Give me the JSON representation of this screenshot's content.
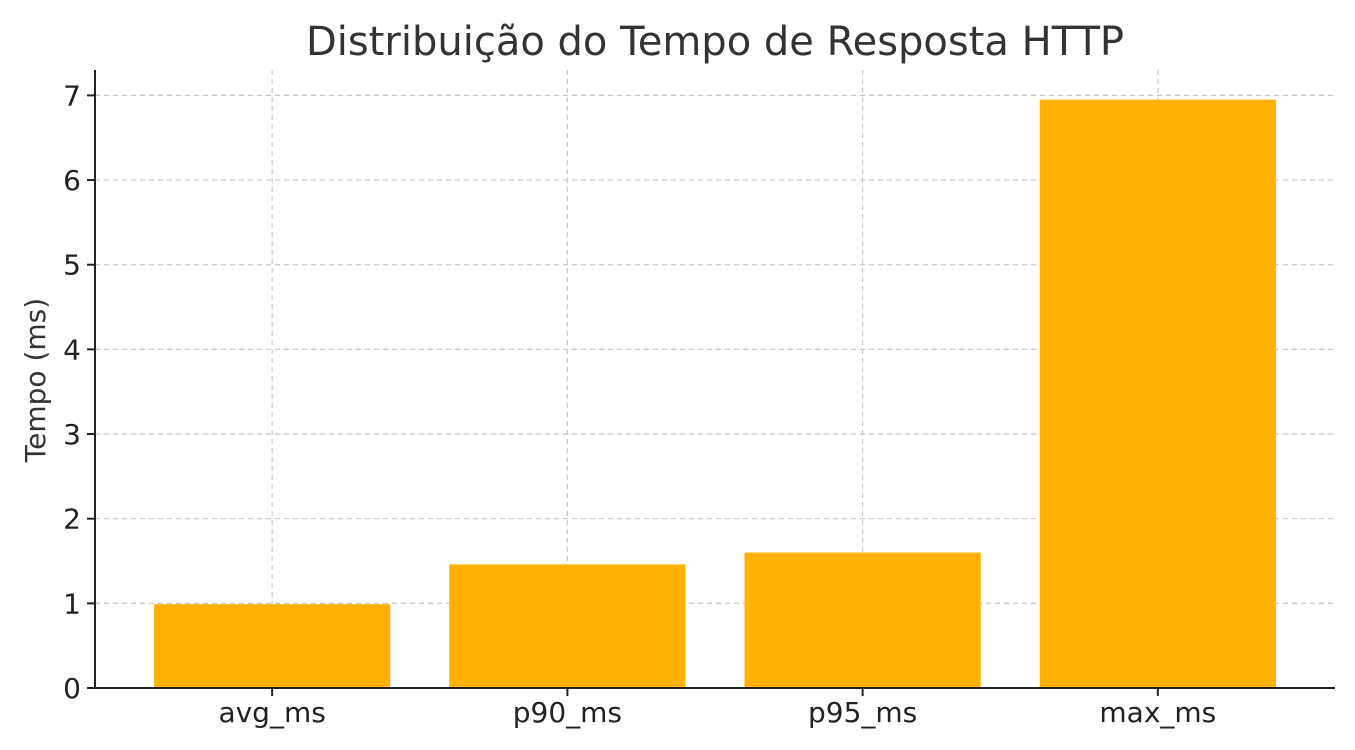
{
  "chart_data": {
    "type": "bar",
    "title": "Distribuição do Tempo de Resposta HTTP",
    "xlabel": "",
    "ylabel": "Tempo (ms)",
    "categories": [
      "avg_ms",
      "p90_ms",
      "p95_ms",
      "max_ms"
    ],
    "values": [
      0.99,
      1.46,
      1.6,
      6.95
    ],
    "ylim": [
      0,
      7.3
    ],
    "yticks": [
      0,
      1,
      2,
      3,
      4,
      5,
      6,
      7
    ],
    "grid": true,
    "bar_color": "#ffb000"
  }
}
